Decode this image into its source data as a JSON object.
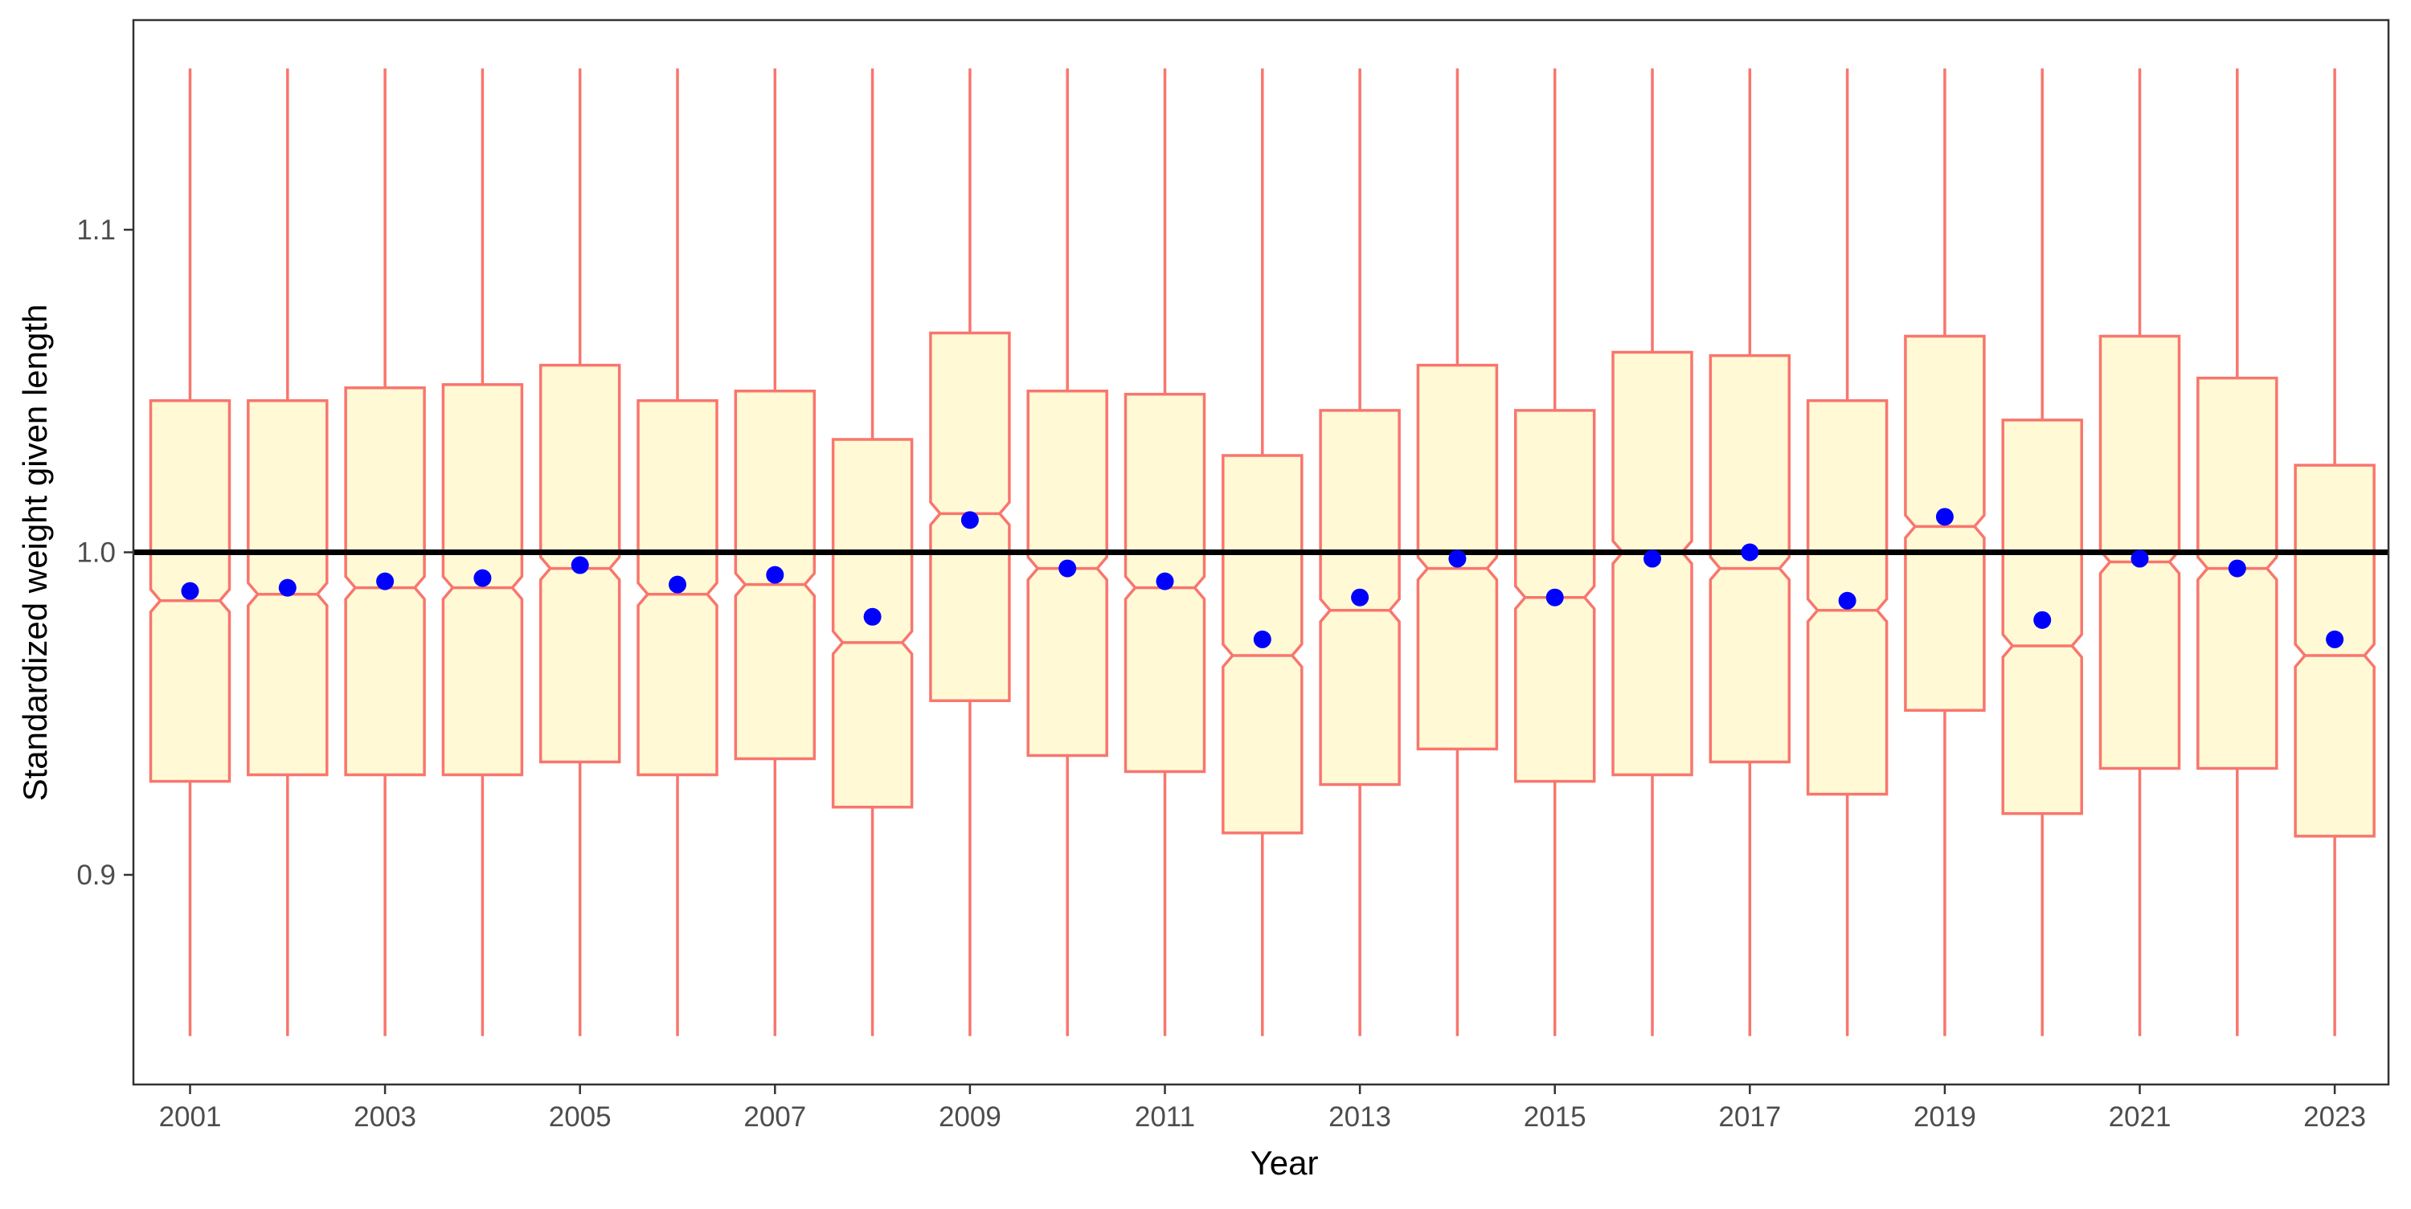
{
  "chart_data": {
    "type": "boxplot",
    "title": "",
    "xlabel": "Year",
    "ylabel": "Standardized weight given length",
    "ylim": [
      0.835,
      1.165
    ],
    "y_ticks": [
      0.9,
      1.0,
      1.1
    ],
    "y_tick_labels": [
      "0.9",
      "1.0",
      "1.1"
    ],
    "x_tick_labels": [
      "2001",
      "2003",
      "2005",
      "2007",
      "2009",
      "2011",
      "2013",
      "2015",
      "2017",
      "2019",
      "2021",
      "2023"
    ],
    "reference_line": 1.0,
    "notched": true,
    "grid": false,
    "colors": {
      "box_fill": "#FFF9D6",
      "box_stroke": "#F8766D",
      "mean_point": "#0000FF",
      "reference_line": "#000000",
      "panel_border": "#333333"
    },
    "categories": [
      "2001",
      "2002",
      "2003",
      "2004",
      "2005",
      "2006",
      "2007",
      "2008",
      "2009",
      "2010",
      "2011",
      "2012",
      "2013",
      "2014",
      "2015",
      "2016",
      "2017",
      "2018",
      "2019",
      "2020",
      "2021",
      "2022",
      "2023"
    ],
    "boxes": [
      {
        "year": "2001",
        "whisker_low": 0.85,
        "q1": 0.929,
        "median": 0.985,
        "q3": 1.047,
        "whisker_high": 1.15,
        "mean": 0.988
      },
      {
        "year": "2002",
        "whisker_low": 0.85,
        "q1": 0.931,
        "median": 0.987,
        "q3": 1.047,
        "whisker_high": 1.15,
        "mean": 0.989
      },
      {
        "year": "2003",
        "whisker_low": 0.85,
        "q1": 0.931,
        "median": 0.989,
        "q3": 1.051,
        "whisker_high": 1.15,
        "mean": 0.991
      },
      {
        "year": "2004",
        "whisker_low": 0.85,
        "q1": 0.931,
        "median": 0.989,
        "q3": 1.052,
        "whisker_high": 1.15,
        "mean": 0.992
      },
      {
        "year": "2005",
        "whisker_low": 0.85,
        "q1": 0.935,
        "median": 0.995,
        "q3": 1.058,
        "whisker_high": 1.15,
        "mean": 0.996
      },
      {
        "year": "2006",
        "whisker_low": 0.85,
        "q1": 0.931,
        "median": 0.987,
        "q3": 1.047,
        "whisker_high": 1.15,
        "mean": 0.99
      },
      {
        "year": "2007",
        "whisker_low": 0.85,
        "q1": 0.936,
        "median": 0.99,
        "q3": 1.05,
        "whisker_high": 1.15,
        "mean": 0.993
      },
      {
        "year": "2008",
        "whisker_low": 0.85,
        "q1": 0.921,
        "median": 0.972,
        "q3": 1.035,
        "whisker_high": 1.15,
        "mean": 0.98
      },
      {
        "year": "2009",
        "whisker_low": 0.85,
        "q1": 0.954,
        "median": 1.012,
        "q3": 1.068,
        "whisker_high": 1.15,
        "mean": 1.01
      },
      {
        "year": "2010",
        "whisker_low": 0.85,
        "q1": 0.937,
        "median": 0.995,
        "q3": 1.05,
        "whisker_high": 1.15,
        "mean": 0.995
      },
      {
        "year": "2011",
        "whisker_low": 0.85,
        "q1": 0.932,
        "median": 0.989,
        "q3": 1.049,
        "whisker_high": 1.15,
        "mean": 0.991
      },
      {
        "year": "2012",
        "whisker_low": 0.85,
        "q1": 0.913,
        "median": 0.968,
        "q3": 1.03,
        "whisker_high": 1.15,
        "mean": 0.973
      },
      {
        "year": "2013",
        "whisker_low": 0.85,
        "q1": 0.928,
        "median": 0.982,
        "q3": 1.044,
        "whisker_high": 1.15,
        "mean": 0.986
      },
      {
        "year": "2014",
        "whisker_low": 0.85,
        "q1": 0.939,
        "median": 0.995,
        "q3": 1.058,
        "whisker_high": 1.15,
        "mean": 0.998
      },
      {
        "year": "2015",
        "whisker_low": 0.85,
        "q1": 0.929,
        "median": 0.986,
        "q3": 1.044,
        "whisker_high": 1.15,
        "mean": 0.986
      },
      {
        "year": "2016",
        "whisker_low": 0.85,
        "q1": 0.931,
        "median": 1.0,
        "q3": 1.062,
        "whisker_high": 1.15,
        "mean": 0.998
      },
      {
        "year": "2017",
        "whisker_low": 0.85,
        "q1": 0.935,
        "median": 0.995,
        "q3": 1.061,
        "whisker_high": 1.15,
        "mean": 1.0
      },
      {
        "year": "2018",
        "whisker_low": 0.85,
        "q1": 0.925,
        "median": 0.982,
        "q3": 1.047,
        "whisker_high": 1.15,
        "mean": 0.985
      },
      {
        "year": "2019",
        "whisker_low": 0.85,
        "q1": 0.951,
        "median": 1.008,
        "q3": 1.067,
        "whisker_high": 1.15,
        "mean": 1.011
      },
      {
        "year": "2020",
        "whisker_low": 0.85,
        "q1": 0.919,
        "median": 0.971,
        "q3": 1.041,
        "whisker_high": 1.15,
        "mean": 0.979
      },
      {
        "year": "2021",
        "whisker_low": 0.85,
        "q1": 0.933,
        "median": 0.997,
        "q3": 1.067,
        "whisker_high": 1.15,
        "mean": 0.998
      },
      {
        "year": "2022",
        "whisker_low": 0.85,
        "q1": 0.933,
        "median": 0.995,
        "q3": 1.054,
        "whisker_high": 1.15,
        "mean": 0.995
      },
      {
        "year": "2023",
        "whisker_low": 0.85,
        "q1": 0.912,
        "median": 0.968,
        "q3": 1.027,
        "whisker_high": 1.15,
        "mean": 0.973
      }
    ]
  }
}
